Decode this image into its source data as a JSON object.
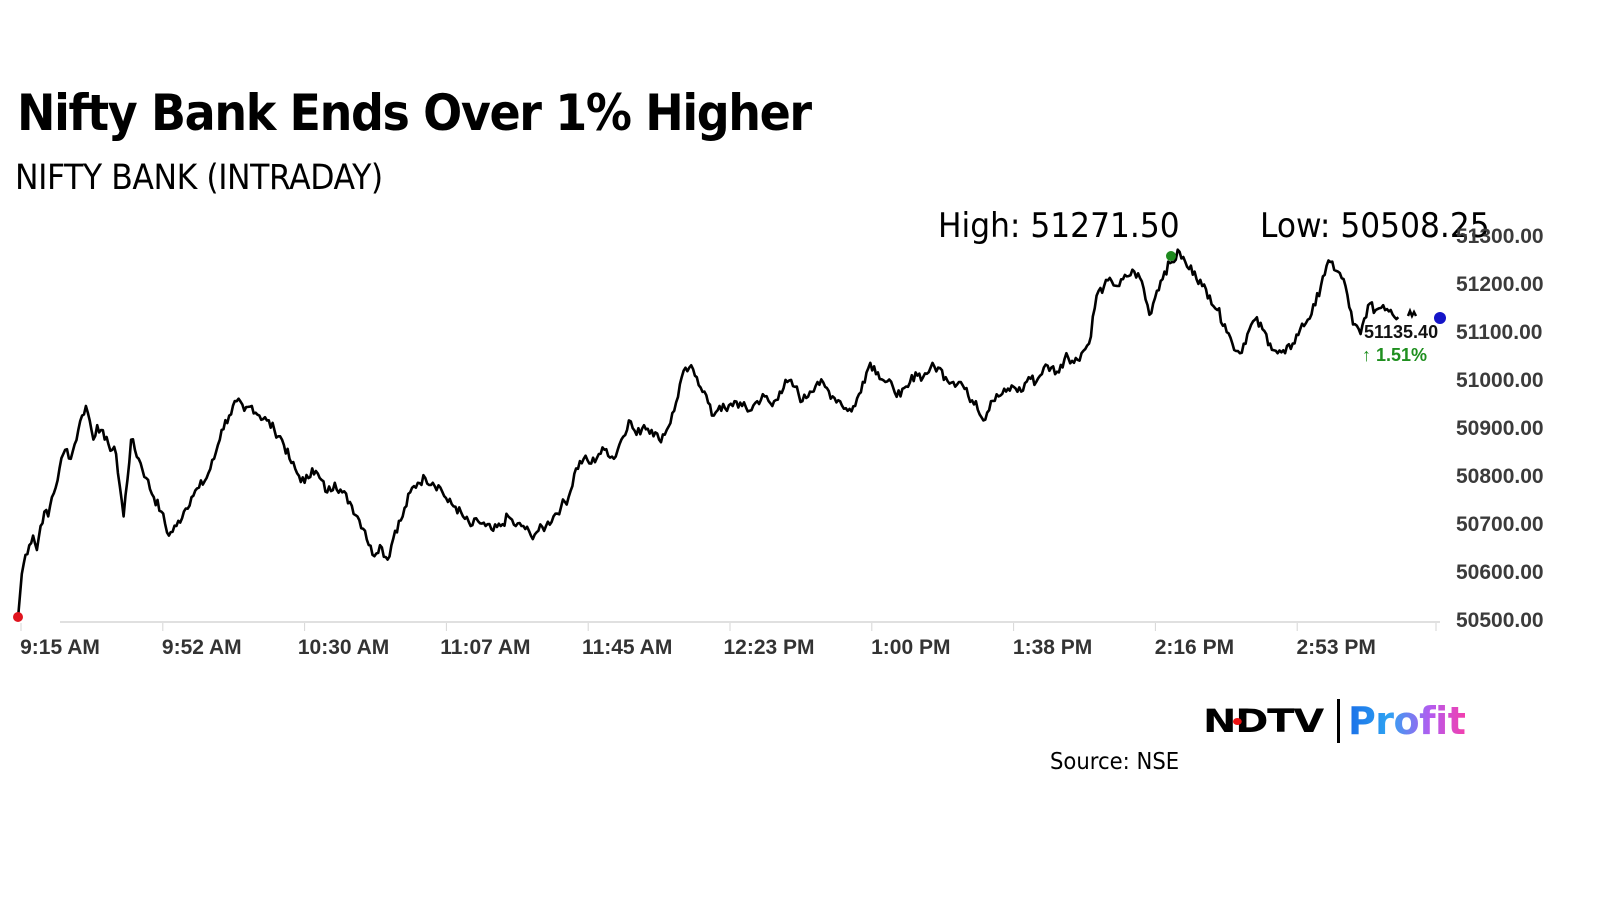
{
  "header": {
    "title": "Nifty Bank Ends Over 1% Higher",
    "subtitle": "NIFTY BANK (INTRADAY)"
  },
  "stats": {
    "high_label": "High: 51271.50",
    "low_label": "Low: 50508.25",
    "last_price": "51135.40",
    "change": "↑ 1.51%"
  },
  "footer": {
    "logo_ndtv": "NDTV",
    "logo_profit": "Profit",
    "source": "Source: NSE"
  },
  "colors": {
    "line": "#000000",
    "high_marker": "#1e8a1e",
    "low_marker": "#e0141e",
    "last_marker": "#1414c8",
    "change_up": "#1f8f1f",
    "axis": "#cfcfcf"
  },
  "chart_data": {
    "type": "line",
    "title": "Nifty Bank Ends Over 1% Higher",
    "subtitle": "NIFTY BANK (INTRADAY)",
    "xlabel": "",
    "ylabel": "",
    "ylim": [
      50500,
      51300
    ],
    "y_ticks": [
      "51300.00",
      "51200.00",
      "51100.00",
      "51000.00",
      "50900.00",
      "50800.00",
      "50700.00",
      "50600.00",
      "50500.00"
    ],
    "x_ticks": [
      "9:15 AM",
      "9:52 AM",
      "10:30 AM",
      "11:07 AM",
      "11:45 AM",
      "12:23 PM",
      "1:00 PM",
      "1:38 PM",
      "2:16 PM",
      "2:53 PM"
    ],
    "grid": false,
    "legend": "none",
    "annotations": {
      "high": 51271.5,
      "low": 50508.25,
      "last": 51135.4,
      "change_pct": 1.51
    },
    "series": [
      {
        "name": "NIFTY BANK",
        "x_minutes_from_open": [
          0,
          1,
          2,
          3,
          4,
          5,
          6,
          7,
          8,
          9,
          10,
          11,
          12,
          13,
          14,
          15,
          16,
          17,
          18,
          19,
          20,
          21,
          22,
          23,
          24,
          26,
          28,
          30,
          32,
          34,
          36,
          38,
          40,
          42,
          44,
          46,
          48,
          50,
          52,
          54,
          56,
          58,
          60,
          62,
          64,
          66,
          68,
          70,
          72,
          74,
          76,
          78,
          80,
          82,
          84,
          86,
          88,
          90,
          92,
          94,
          96,
          98,
          100,
          102,
          104,
          106,
          108,
          110,
          112,
          114,
          116,
          118,
          120,
          122,
          124,
          126,
          128,
          130,
          132,
          134,
          136,
          138,
          140,
          142,
          144,
          146,
          148,
          150,
          152,
          154,
          156,
          158,
          160,
          162,
          164,
          166,
          168,
          170,
          172,
          174,
          176,
          178,
          180,
          182,
          184,
          186,
          188,
          190,
          192,
          194,
          196,
          198,
          200,
          202,
          204,
          206,
          208,
          210,
          212,
          214,
          216,
          218,
          220,
          222,
          224,
          226,
          228,
          230,
          232,
          234,
          236,
          238,
          240,
          242,
          244,
          246,
          248,
          250,
          252,
          254,
          256,
          258,
          260,
          262,
          264,
          266,
          268,
          270,
          272,
          274,
          276,
          278,
          280,
          282,
          284,
          286,
          288,
          290,
          292,
          294,
          296,
          298,
          300,
          302,
          304,
          306,
          308,
          310,
          312,
          314,
          316,
          318,
          320,
          322,
          324,
          326,
          328,
          330,
          332,
          334,
          336,
          338,
          340,
          342,
          344,
          346,
          348,
          350,
          352,
          354,
          356,
          358,
          360,
          362,
          364,
          366,
          368,
          370,
          372
        ],
        "values": [
          50508,
          50600,
          50640,
          50660,
          50680,
          50650,
          50700,
          50730,
          50720,
          50760,
          50780,
          50820,
          50850,
          50860,
          50840,
          50870,
          50900,
          50930,
          50950,
          50920,
          50880,
          50910,
          50900,
          50880,
          50870,
          50850,
          50720,
          50880,
          50840,
          50800,
          50760,
          50730,
          50680,
          50700,
          50730,
          50760,
          50780,
          50800,
          50840,
          50900,
          50930,
          50960,
          50940,
          50950,
          50930,
          50920,
          50900,
          50880,
          50840,
          50810,
          50790,
          50820,
          50800,
          50770,
          50790,
          50770,
          50750,
          50720,
          50690,
          50640,
          50660,
          50630,
          50690,
          50720,
          50770,
          50790,
          50800,
          50790,
          50780,
          50750,
          50740,
          50720,
          50700,
          50710,
          50700,
          50690,
          50700,
          50720,
          50700,
          50700,
          50680,
          50690,
          50700,
          50720,
          50740,
          50760,
          50820,
          50840,
          50830,
          50850,
          50860,
          50840,
          50880,
          50920,
          50890,
          50910,
          50900,
          50880,
          50900,
          50940,
          51010,
          51030,
          51010,
          50980,
          50930,
          50950,
          50940,
          50960,
          50950,
          50940,
          50960,
          50970,
          50950,
          50980,
          51000,
          50990,
          50960,
          50980,
          51000,
          50990,
          50970,
          50960,
          50940,
          50950,
          51000,
          51040,
          51020,
          51000,
          50990,
          50970,
          50990,
          51020,
          51010,
          51030,
          51030,
          51010,
          51000,
          51000,
          50970,
          50960,
          50920,
          50960,
          50970,
          50980,
          50990,
          50980,
          51010,
          51000,
          51030,
          51030,
          51020,
          51060,
          51040,
          51060,
          51080,
          51180,
          51200,
          51210,
          51200,
          51220,
          51230,
          51210,
          51140,
          51190,
          51230,
          51250,
          51271,
          51240,
          51230,
          51200,
          51180,
          51150,
          51120,
          51080,
          51060,
          51100,
          51130,
          51110,
          51080,
          51060,
          51060,
          51080,
          51110,
          51130,
          51160,
          51220,
          51250,
          51230,
          51200,
          51120,
          51100,
          51160,
          51150,
          51160,
          51150,
          51135
        ]
      }
    ]
  }
}
